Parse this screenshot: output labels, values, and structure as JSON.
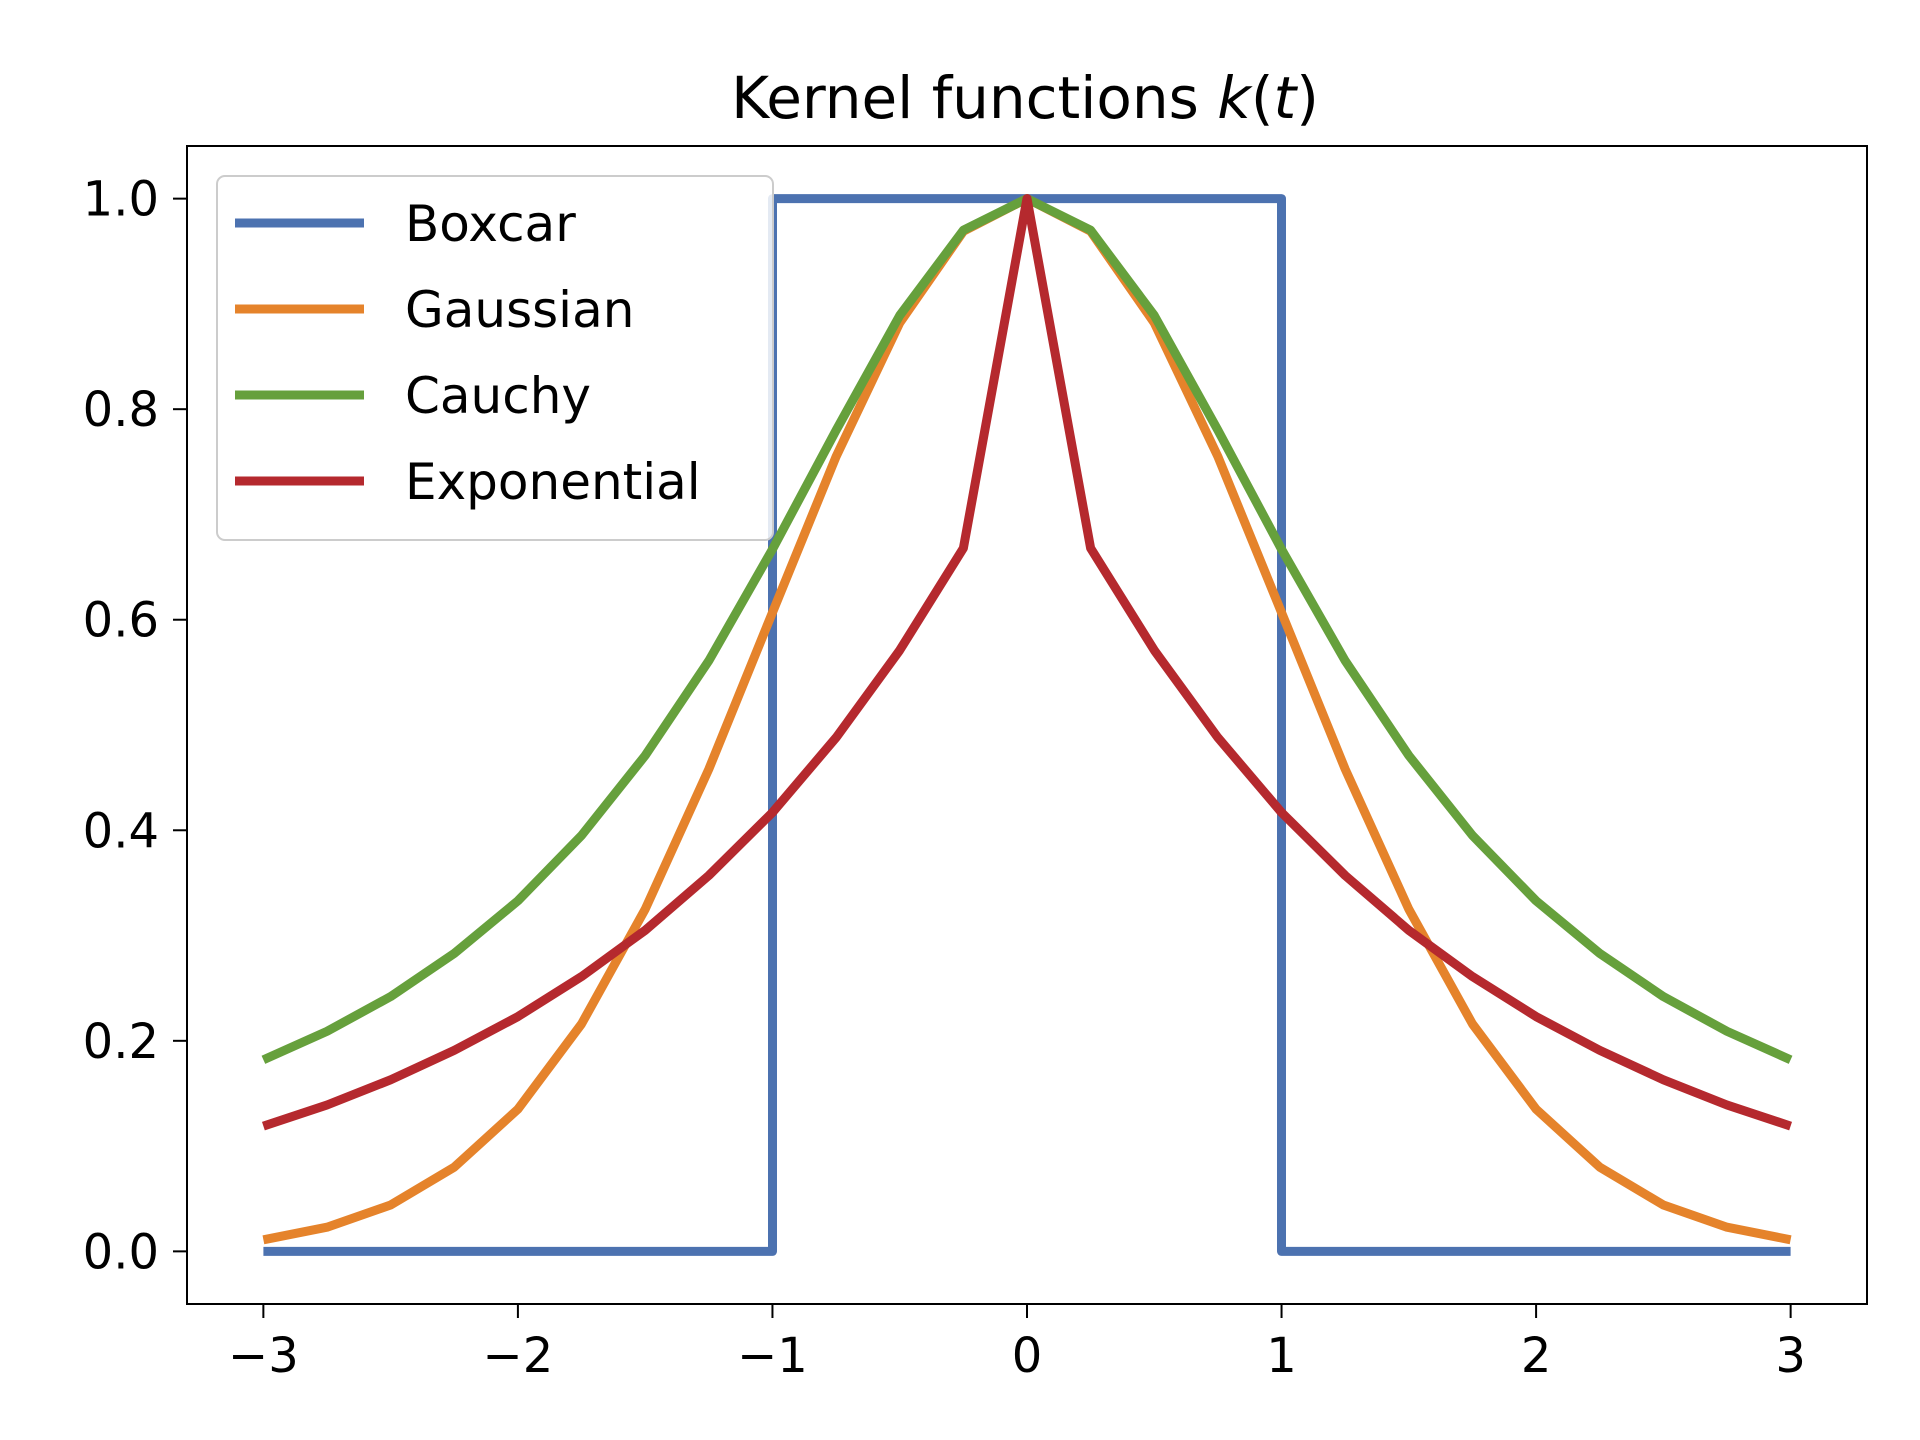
{
  "chart_data": {
    "type": "line",
    "title": {
      "prefix": "Kernel functions ",
      "var": "k",
      "open": "(",
      "arg": "t",
      "close": ")"
    },
    "xlabel": "",
    "ylabel": "",
    "xlim": [
      -3.3,
      3.3
    ],
    "ylim": [
      -0.05,
      1.05
    ],
    "x_ticks": [
      -3,
      -2,
      -1,
      0,
      1,
      2,
      3
    ],
    "x_tick_labels": [
      "−3",
      "−2",
      "−1",
      "0",
      "1",
      "2",
      "3"
    ],
    "y_ticks": [
      0.0,
      0.2,
      0.4,
      0.6,
      0.8,
      1.0
    ],
    "y_tick_labels": [
      "0.0",
      "0.2",
      "0.4",
      "0.6",
      "0.8",
      "1.0"
    ],
    "grid": false,
    "legend_position": "upper-left",
    "series": [
      {
        "name": "Boxcar",
        "color": "#4c72b0",
        "x": [
          -3,
          -1,
          -1,
          1,
          1,
          3
        ],
        "y": [
          0,
          0,
          1,
          1,
          0,
          0
        ]
      },
      {
        "name": "Gaussian",
        "color": "#e5832b",
        "x": [
          -3,
          -2.75,
          -2.5,
          -2.25,
          -2,
          -1.75,
          -1.5,
          -1.25,
          -1,
          -0.75,
          -0.5,
          -0.25,
          0,
          0.25,
          0.5,
          0.75,
          1,
          1.25,
          1.5,
          1.75,
          2,
          2.25,
          2.5,
          2.75,
          3
        ],
        "y": [
          0.011,
          0.023,
          0.044,
          0.08,
          0.135,
          0.216,
          0.325,
          0.458,
          0.607,
          0.755,
          0.882,
          0.969,
          1.0,
          0.969,
          0.882,
          0.755,
          0.607,
          0.458,
          0.325,
          0.216,
          0.135,
          0.08,
          0.044,
          0.023,
          0.011
        ]
      },
      {
        "name": "Cauchy",
        "color": "#66a03c",
        "x": [
          -3,
          -2.75,
          -2.5,
          -2.25,
          -2,
          -1.75,
          -1.5,
          -1.25,
          -1,
          -0.75,
          -0.5,
          -0.25,
          0,
          0.25,
          0.5,
          0.75,
          1,
          1.25,
          1.5,
          1.75,
          2,
          2.25,
          2.5,
          2.75,
          3
        ],
        "y": [
          0.182,
          0.209,
          0.242,
          0.283,
          0.333,
          0.395,
          0.471,
          0.561,
          0.667,
          0.78,
          0.889,
          0.97,
          1.0,
          0.97,
          0.889,
          0.78,
          0.667,
          0.561,
          0.471,
          0.395,
          0.333,
          0.283,
          0.242,
          0.209,
          0.182
        ]
      },
      {
        "name": "Exponential",
        "color": "#b5292e",
        "x": [
          -3,
          -2.75,
          -2.5,
          -2.25,
          -2,
          -1.75,
          -1.5,
          -1.25,
          -1,
          -0.75,
          -0.5,
          -0.25,
          0,
          0.25,
          0.5,
          0.75,
          1,
          1.25,
          1.5,
          1.75,
          2,
          2.25,
          2.5,
          2.75,
          3
        ],
        "y": [
          0.119,
          0.139,
          0.163,
          0.191,
          0.223,
          0.261,
          0.305,
          0.357,
          0.417,
          0.488,
          0.571,
          0.668,
          1.0,
          0.668,
          0.571,
          0.488,
          0.417,
          0.357,
          0.305,
          0.261,
          0.223,
          0.191,
          0.163,
          0.139,
          0.119
        ]
      }
    ]
  }
}
